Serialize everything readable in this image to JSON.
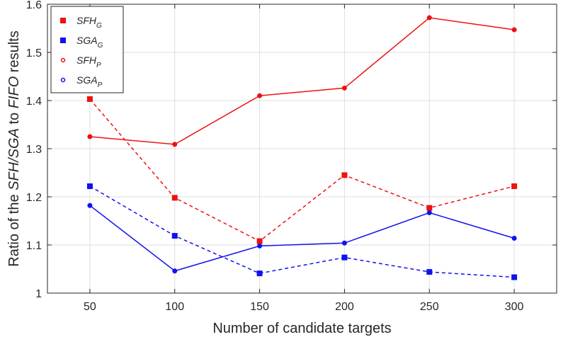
{
  "chart_data": {
    "type": "line",
    "x": [
      50,
      100,
      150,
      200,
      250,
      300
    ],
    "xlim": [
      25,
      325
    ],
    "ylim": [
      1,
      1.6
    ],
    "xticks": [
      "50",
      "100",
      "150",
      "200",
      "250",
      "300"
    ],
    "yticks": [
      "1",
      "1.1",
      "1.2",
      "1.3",
      "1.4",
      "1.5",
      "1.6"
    ],
    "xlabel": "Number of candidate targets",
    "ylabel": {
      "prefix": "Ratio of the ",
      "italic1": "SFH/SGA",
      "middle": " to ",
      "italic2": "FIFO",
      "suffix": " results"
    },
    "grid": true,
    "legend_position": "top-left",
    "series": [
      {
        "name": "SFH_G",
        "legend_main": "SFH",
        "legend_sub": "G",
        "color": "#ee1111",
        "line_style": "dashed",
        "marker": "square",
        "values": [
          1.403,
          1.198,
          1.108,
          1.245,
          1.177,
          1.222
        ]
      },
      {
        "name": "SGA_G",
        "legend_main": "SGA",
        "legend_sub": "G",
        "color": "#1111ee",
        "line_style": "dashed",
        "marker": "square",
        "values": [
          1.222,
          1.119,
          1.041,
          1.074,
          1.044,
          1.033
        ]
      },
      {
        "name": "SFH_P",
        "legend_main": "SFH",
        "legend_sub": "P",
        "color": "#ee1111",
        "line_style": "solid",
        "marker": "circle",
        "values": [
          1.325,
          1.309,
          1.41,
          1.426,
          1.572,
          1.547
        ]
      },
      {
        "name": "SGA_P",
        "legend_main": "SGA",
        "legend_sub": "P",
        "color": "#1111ee",
        "line_style": "solid",
        "marker": "circle",
        "values": [
          1.182,
          1.046,
          1.098,
          1.104,
          1.167,
          1.114
        ]
      }
    ]
  }
}
